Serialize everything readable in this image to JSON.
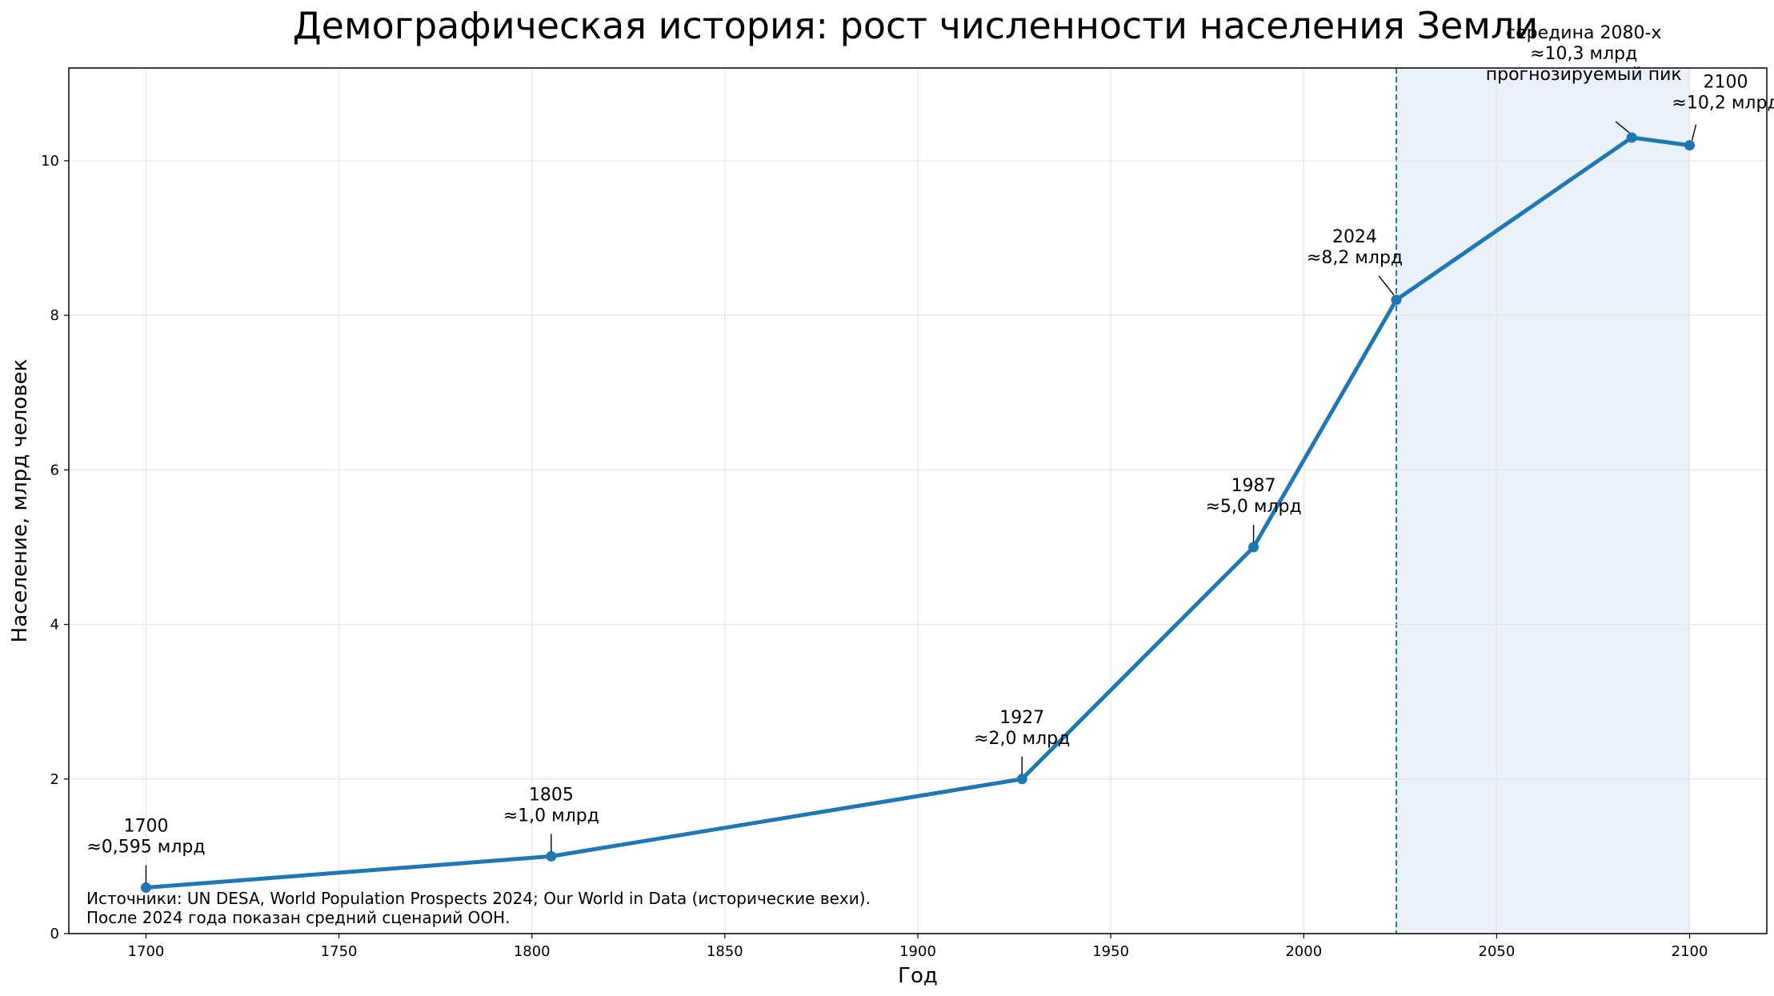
{
  "chart_data": {
    "type": "line",
    "title": "Демографическая история: рост численности населения Земли",
    "xlabel": "Год",
    "ylabel": "Население, млрд человек",
    "xlim": [
      1680,
      2120
    ],
    "ylim": [
      0,
      11.2
    ],
    "xticks": [
      1700,
      1750,
      1800,
      1850,
      1900,
      1950,
      2000,
      2050,
      2100
    ],
    "yticks": [
      0,
      2,
      4,
      6,
      8,
      10
    ],
    "grid": true,
    "line_color": "#1f77b4",
    "projection_band_color": "#dbe6f3",
    "projection_start": 2024,
    "projection_end": 2100,
    "points": [
      {
        "x": 1700,
        "y": 0.595
      },
      {
        "x": 1805,
        "y": 1.0
      },
      {
        "x": 1927,
        "y": 2.0
      },
      {
        "x": 1987,
        "y": 5.0
      },
      {
        "x": 2024,
        "y": 8.2
      },
      {
        "x": 2085,
        "y": 10.3
      },
      {
        "x": 2100,
        "y": 10.2
      }
    ],
    "annotations": [
      {
        "lines": [
          "1700",
          "≈0,595 млрд"
        ]
      },
      {
        "lines": [
          "1805",
          "≈1,0 млрд"
        ]
      },
      {
        "lines": [
          "1927",
          "≈2,0 млрд"
        ]
      },
      {
        "lines": [
          "1987",
          "≈5,0 млрд"
        ]
      },
      {
        "lines": [
          "2024",
          "≈8,2 млрд"
        ]
      },
      {
        "lines": [
          "середина 2080-х",
          "≈10,3 млрд",
          "прогнозируемый пик"
        ]
      },
      {
        "lines": [
          "2100",
          "≈10,2 млрд"
        ]
      }
    ],
    "source_note": [
      "Источники: UN DESA, World Population Prospects 2024; Our World in Data (исторические вехи).",
      "После 2024 года показан средний сценарий ООН."
    ]
  }
}
